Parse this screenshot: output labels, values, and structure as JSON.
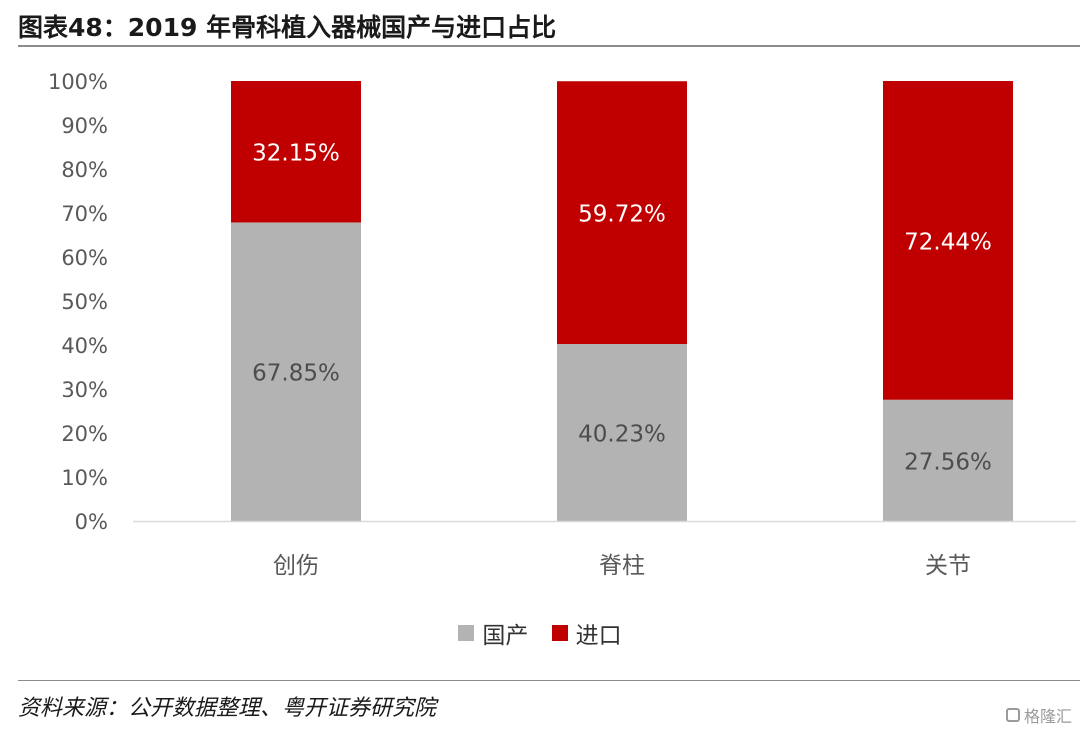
{
  "header": {
    "title": "图表48：2019 年骨科植入器械国产与进口占比"
  },
  "footer": {
    "source": "资料来源：公开数据整理、粤开证券研究院",
    "watermark": "格隆汇"
  },
  "colors": {
    "domestic": "#b3b3b3",
    "import": "#c00000"
  },
  "chart_data": {
    "type": "bar",
    "stacked": true,
    "categories": [
      "创伤",
      "脊柱",
      "关节"
    ],
    "series": [
      {
        "name": "国产",
        "values": [
          67.85,
          40.23,
          27.56
        ],
        "labels": [
          "67.85%",
          "40.23%",
          "27.56%"
        ]
      },
      {
        "name": "进口",
        "values": [
          32.15,
          59.72,
          72.44
        ],
        "labels": [
          "32.15%",
          "59.72%",
          "72.44%"
        ]
      }
    ],
    "yticks": [
      "0%",
      "10%",
      "20%",
      "30%",
      "40%",
      "50%",
      "60%",
      "70%",
      "80%",
      "90%",
      "100%"
    ],
    "ylim": [
      0,
      100
    ],
    "grid": false,
    "legend_position": "bottom"
  }
}
